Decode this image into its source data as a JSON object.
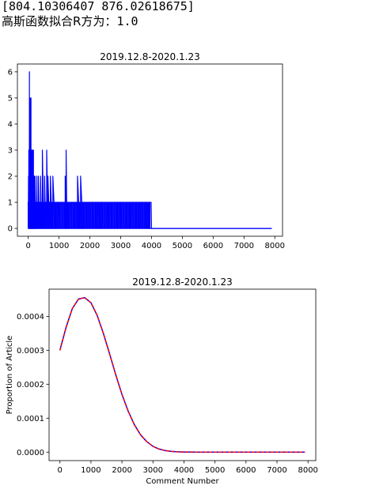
{
  "output": {
    "array_text": "[804.10306407 876.02618675]",
    "r2_label": "高斯函数拟合R方为：",
    "r2_value": "1.0"
  },
  "chart_data": [
    {
      "type": "line",
      "title": "2019.12.8-2020.1.23",
      "xlabel": "",
      "ylabel": "",
      "xlim": [
        -350,
        8250
      ],
      "ylim": [
        -0.3,
        6.3
      ],
      "xticks": [
        0,
        1000,
        2000,
        3000,
        4000,
        5000,
        6000,
        7000,
        8000
      ],
      "yticks": [
        0,
        1,
        2,
        3,
        4,
        5,
        6
      ],
      "grid": false,
      "series": [
        {
          "color": "#0000ff",
          "description": "count of articles per comment number; spiky, peaks near 0-200, drops to 0-1 after ~2400, flat 0 from ~4000 to ~7900",
          "x": [
            0,
            10,
            20,
            30,
            40,
            50,
            60,
            70,
            80,
            90,
            100,
            110,
            120,
            130,
            140,
            150,
            160,
            170,
            180,
            200,
            220,
            250,
            280,
            300,
            330,
            360,
            400,
            430,
            460,
            500,
            530,
            560,
            600,
            640,
            680,
            720,
            760,
            800,
            850,
            900,
            950,
            1000,
            1100,
            1200,
            1230,
            1260,
            1300,
            1400,
            1500,
            1600,
            1650,
            1700,
            1750,
            1800,
            1900,
            2000,
            2100,
            2200,
            2300,
            2350,
            2400,
            2500,
            2600,
            2700,
            2800,
            2900,
            3000,
            3100,
            3200,
            3300,
            3400,
            3500,
            3600,
            3700,
            3800,
            3850,
            3900,
            3950,
            4000,
            7900
          ],
          "y": [
            1,
            2,
            3,
            1,
            6,
            2,
            5,
            3,
            1,
            5,
            3,
            2,
            3,
            1,
            3,
            2,
            1,
            3,
            1,
            2,
            2,
            1,
            2,
            1,
            2,
            1,
            2,
            1,
            3,
            1,
            2,
            1,
            3,
            2,
            1,
            2,
            1,
            2,
            1,
            1,
            1,
            1,
            1,
            2,
            3,
            1,
            1,
            1,
            1,
            2,
            1,
            2,
            1,
            1,
            1,
            1,
            1,
            1,
            1,
            1,
            1,
            1,
            1,
            1,
            1,
            1,
            1,
            1,
            1,
            1,
            1,
            1,
            1,
            1,
            1,
            1,
            1,
            1,
            0,
            0
          ]
        }
      ]
    },
    {
      "type": "line",
      "title": "2019.12.8-2020.1.23",
      "xlabel": "Comment Number",
      "ylabel": "Proportion of Article",
      "xlim": [
        -350,
        8250
      ],
      "ylim": [
        -2.5e-05,
        0.00048
      ],
      "xticks": [
        0,
        1000,
        2000,
        3000,
        4000,
        5000,
        6000,
        7000,
        8000
      ],
      "yticks": [
        0.0,
        0.0001,
        0.0002,
        0.0003,
        0.0004
      ],
      "ytick_labels": [
        "0.0000",
        "0.0001",
        "0.0002",
        "0.0003",
        "0.0004"
      ],
      "grid": false,
      "series": [
        {
          "color": "#0000ff",
          "style": "solid",
          "x": [
            0,
            200,
            400,
            600,
            800,
            1000,
            1200,
            1400,
            1600,
            1800,
            2000,
            2200,
            2400,
            2600,
            2800,
            3000,
            3200,
            3400,
            3600,
            3800,
            4000,
            4500,
            5000,
            6000,
            7000,
            7900
          ],
          "y": [
            0.0003,
            0.000368,
            0.000423,
            0.000451,
            0.000455,
            0.00044,
            0.000403,
            0.00035,
            0.00029,
            0.000228,
            0.00017,
            0.000121,
            8.1e-05,
            5.1e-05,
            3.1e-05,
            1.7e-05,
            9e-06,
            4.5e-06,
            2e-06,
            9e-07,
            4e-07,
            3e-08,
            0.0,
            0.0,
            0.0,
            0.0
          ]
        },
        {
          "color": "#ff0000",
          "style": "dashed",
          "x": [
            0,
            200,
            400,
            600,
            800,
            1000,
            1200,
            1400,
            1600,
            1800,
            2000,
            2200,
            2400,
            2600,
            2800,
            3000,
            3200,
            3400,
            3600,
            3800,
            4000,
            4500,
            5000,
            6000,
            7000,
            7900
          ],
          "y": [
            0.0003,
            0.000368,
            0.000423,
            0.000451,
            0.000455,
            0.00044,
            0.000403,
            0.00035,
            0.00029,
            0.000228,
            0.00017,
            0.000121,
            8.1e-05,
            5.1e-05,
            3.1e-05,
            1.7e-05,
            9e-06,
            4.5e-06,
            2e-06,
            9e-07,
            4e-07,
            3e-08,
            0.0,
            0.0,
            0.0,
            0.0
          ]
        }
      ]
    }
  ]
}
